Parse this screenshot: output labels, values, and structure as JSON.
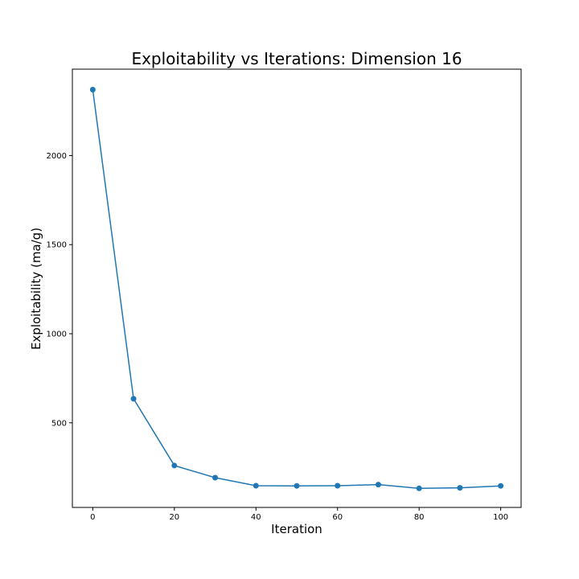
{
  "chart_data": {
    "type": "line",
    "title": "Exploitability vs Iterations: Dimension 16",
    "xlabel": "Iteration",
    "ylabel": "Exploitability (ma/g)",
    "x": [
      0,
      10,
      20,
      30,
      40,
      50,
      60,
      70,
      80,
      90,
      100
    ],
    "series": [
      {
        "values": [
          2370,
          635,
          260,
          192,
          147,
          146,
          147,
          153,
          132,
          135,
          146
        ],
        "color": "#1f77b4"
      }
    ],
    "xlim": [
      -5,
      105
    ],
    "ylim": [
      25,
      2485
    ],
    "xticks": [
      0,
      20,
      40,
      60,
      80,
      100
    ],
    "yticks": [
      500,
      1000,
      1500,
      2000
    ],
    "grid": false,
    "legend": false
  }
}
